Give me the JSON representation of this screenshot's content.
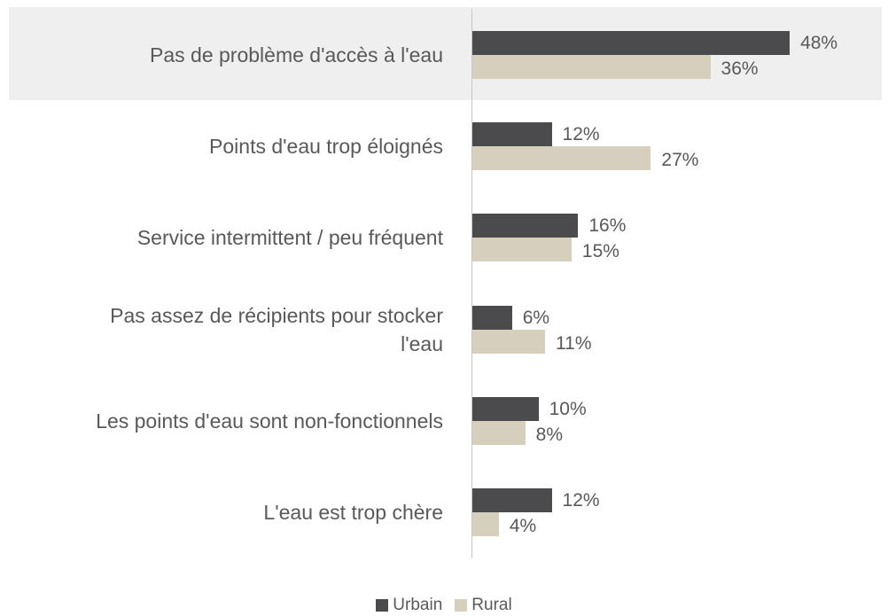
{
  "chart_data": {
    "type": "bar",
    "orientation": "horizontal",
    "categories": [
      "Pas de problème d'accès à l'eau",
      "Points d'eau trop éloignés",
      "Service intermittent / peu fréquent",
      "Pas assez de récipients pour stocker l'eau",
      "Les points d'eau sont non-fonctionnels",
      "L'eau est trop chère"
    ],
    "series": [
      {
        "name": "Urbain",
        "color": "#4b4b4d",
        "values": [
          48,
          12,
          16,
          6,
          10,
          12
        ],
        "value_labels": [
          "48%",
          "12%",
          "16%",
          "6%",
          "10%",
          "12%"
        ]
      },
      {
        "name": "Rural",
        "color": "#d6cfbd",
        "values": [
          36,
          27,
          15,
          11,
          8,
          4
        ],
        "value_labels": [
          "36%",
          "27%",
          "15%",
          "11%",
          "8%",
          "4%"
        ]
      }
    ],
    "legend": "bottom"
  }
}
